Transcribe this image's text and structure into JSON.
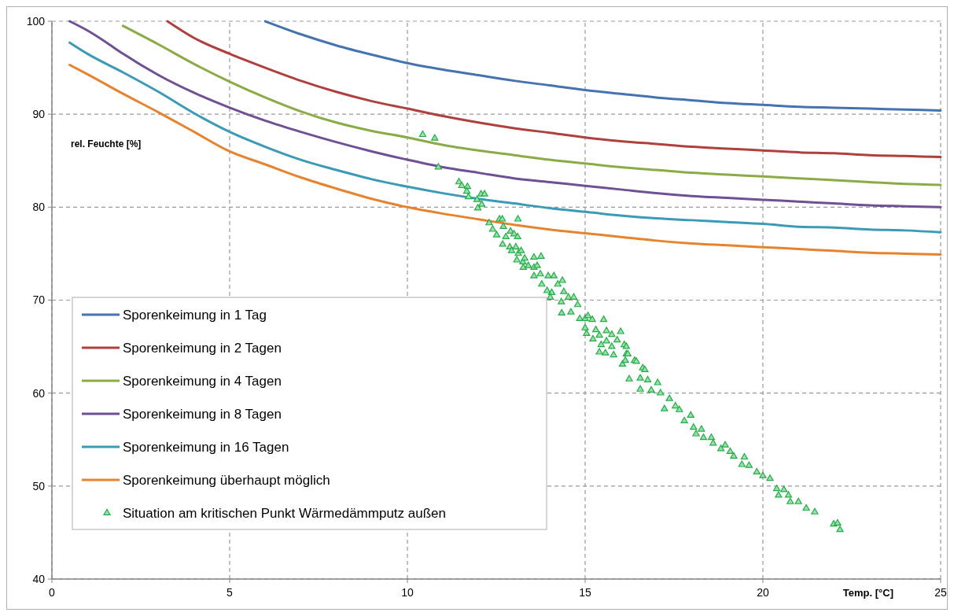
{
  "chart_data": {
    "type": "line",
    "xlabel": "Temp. [°C]",
    "ylabel": "rel. Feuchte [%]",
    "xlim": [
      0,
      25
    ],
    "xticks": [
      0,
      5,
      10,
      15,
      20,
      25
    ],
    "ylim": [
      40,
      100
    ],
    "yticks": [
      40,
      50,
      60,
      70,
      80,
      90,
      100
    ],
    "grid": true,
    "legend": "bottom left",
    "marker": "none",
    "series": [
      {
        "name": "Sporenkeimung in 1 Tag",
        "color": "#4572b0",
        "x": [
          6,
          7,
          8,
          9,
          10,
          11,
          12,
          13,
          14,
          15,
          16,
          17,
          18,
          19,
          20,
          21,
          22,
          23,
          24,
          25
        ],
        "values": [
          100,
          98.6,
          97.4,
          96.4,
          95.5,
          94.8,
          94.2,
          93.6,
          93.1,
          92.6,
          92.2,
          91.8,
          91.5,
          91.2,
          91,
          90.8,
          90.7,
          90.6,
          90.5,
          90.4
        ]
      },
      {
        "name": "Sporenkeimung in 2 Tagen",
        "color": "#b0403e",
        "x": [
          3.25,
          4,
          5,
          6,
          7,
          8,
          9,
          10,
          11,
          12,
          13,
          14,
          15,
          16,
          17,
          18,
          19,
          20,
          21,
          22,
          23,
          24,
          25
        ],
        "values": [
          100,
          98.2,
          96.5,
          95,
          93.6,
          92.4,
          91.4,
          90.6,
          89.8,
          89.1,
          88.5,
          88,
          87.5,
          87.1,
          86.8,
          86.5,
          86.3,
          86.1,
          85.9,
          85.8,
          85.6,
          85.5,
          85.4
        ]
      },
      {
        "name": "Sporenkeimung in 4 Tagen",
        "color": "#8aab45",
        "x": [
          2,
          3,
          4,
          5,
          6,
          7,
          8,
          9,
          10,
          11,
          12,
          13,
          14,
          15,
          16,
          17,
          18,
          19,
          20,
          21,
          22,
          23,
          24,
          25
        ],
        "values": [
          99.5,
          97.5,
          95.4,
          93.5,
          91.8,
          90.3,
          89.1,
          88.2,
          87.5,
          86.7,
          86.1,
          85.6,
          85.1,
          84.7,
          84.3,
          84,
          83.7,
          83.5,
          83.3,
          83.1,
          82.9,
          82.7,
          82.5,
          82.4
        ]
      },
      {
        "name": "Sporenkeimung in 8 Tagen",
        "color": "#6f5095",
        "x": [
          0.5,
          1,
          1.5,
          2,
          3,
          4,
          5,
          6,
          7,
          8,
          9,
          10,
          11,
          12,
          13,
          14,
          15,
          16,
          17,
          18,
          19,
          20,
          21,
          22,
          23,
          24,
          25
        ],
        "values": [
          100,
          99,
          97.8,
          96.5,
          94.2,
          92.3,
          90.7,
          89.3,
          88.1,
          87,
          86,
          85.1,
          84.3,
          83.7,
          83.1,
          82.7,
          82.3,
          81.9,
          81.5,
          81.2,
          81,
          80.8,
          80.6,
          80.4,
          80.2,
          80.1,
          80
        ]
      },
      {
        "name": "Sporenkeimung in 16 Tagen",
        "color": "#3b9ab5",
        "x": [
          0.5,
          1,
          2,
          3,
          4,
          5,
          6,
          7,
          8,
          9,
          10,
          11,
          12,
          13,
          14,
          15,
          16,
          17,
          18,
          19,
          20,
          21,
          22,
          23,
          24,
          25
        ],
        "values": [
          97.7,
          96.5,
          94.5,
          92.4,
          90.1,
          88.1,
          86.5,
          85.1,
          84,
          83,
          82.2,
          81.5,
          80.9,
          80.4,
          79.9,
          79.5,
          79.1,
          78.8,
          78.6,
          78.4,
          78.2,
          77.9,
          77.8,
          77.6,
          77.5,
          77.3
        ]
      },
      {
        "name": "Sporenkeimung überhaupt möglich",
        "color": "#e5832f",
        "x": [
          0.5,
          1,
          2,
          3,
          4,
          5,
          6,
          7,
          8,
          9,
          10,
          11,
          12,
          13,
          14,
          15,
          16,
          17,
          18,
          19,
          20,
          21,
          22,
          23,
          24,
          25
        ],
        "values": [
          95.3,
          94.3,
          92.2,
          90.2,
          88.1,
          86,
          84.6,
          83.2,
          82,
          80.9,
          80,
          79.3,
          78.7,
          78.1,
          77.6,
          77.2,
          76.8,
          76.4,
          76.1,
          75.9,
          75.7,
          75.5,
          75.3,
          75.1,
          75,
          74.9
        ]
      },
      {
        "name": "Situation am kritischen Punkt Wärmedämmputz außen",
        "type": "scatter",
        "marker": "triangle",
        "color": "#22ad4a",
        "x": [
          10.43,
          10.77,
          10.87,
          11.45,
          11.53,
          11.69,
          11.67,
          11.72,
          11.96,
          12.07,
          12.17,
          12.09,
          11.98,
          12.3,
          12.59,
          12.67,
          13.11,
          12.4,
          12.7,
          12.51,
          12.77,
          12.9,
          13.0,
          13.1,
          12.68,
          12.88,
          13.05,
          12.93,
          13.12,
          13.2,
          13.08,
          13.25,
          13.3,
          13.56,
          13.76,
          13.26,
          13.4,
          13.56,
          13.65,
          13.56,
          13.74,
          13.96,
          14.12,
          13.78,
          13.93,
          14.06,
          14.23,
          14.36,
          14.02,
          14.33,
          14.4,
          14.53,
          14.68,
          14.79,
          14.34,
          14.6,
          14.85,
          15.0,
          15.08,
          15.2,
          15.52,
          15.0,
          15.04,
          15.3,
          15.4,
          15.6,
          15.75,
          16.0,
          15.22,
          15.45,
          15.6,
          15.75,
          15.9,
          16.1,
          15.4,
          15.57,
          15.8,
          16.05,
          16.16,
          16.39,
          16.62,
          16.16,
          16.2,
          16.13,
          16.44,
          16.68,
          16.24,
          16.55,
          16.76,
          17.04,
          16.55,
          16.86,
          17.12,
          17.37,
          17.23,
          17.54,
          17.65,
          17.97,
          17.79,
          18.05,
          18.27,
          18.12,
          18.33,
          18.55,
          18.6,
          18.94,
          18.82,
          19.08,
          19.18,
          19.48,
          19.41,
          19.61,
          19.83,
          20.0,
          20.2,
          20.39,
          20.59,
          20.44,
          20.72,
          20.77,
          21.0,
          21.22,
          21.46,
          21.99,
          22.1,
          22.17
        ],
        "values": [
          87.8,
          87.4,
          84.3,
          82.7,
          82.3,
          82.2,
          81.7,
          81.1,
          80.8,
          81.4,
          81.4,
          80.3,
          79.9,
          78.3,
          78.7,
          78.7,
          78.7,
          77.6,
          77.9,
          77.0,
          76.8,
          77.4,
          77.1,
          76.8,
          76.0,
          75.7,
          75.7,
          75.3,
          75.0,
          75.3,
          74.3,
          74.1,
          74.5,
          74.6,
          74.7,
          73.5,
          73.7,
          73.5,
          73.7,
          72.6,
          72.8,
          72.6,
          72.6,
          71.7,
          71.0,
          70.8,
          71.7,
          72.1,
          70.3,
          69.8,
          70.9,
          70.3,
          70.3,
          69.5,
          68.6,
          68.7,
          68.0,
          68.0,
          68.3,
          67.9,
          67.9,
          67.0,
          66.4,
          66.8,
          66.2,
          66.7,
          66.3,
          66.6,
          65.8,
          65.2,
          65.6,
          65.0,
          65.7,
          65.2,
          64.4,
          64.3,
          64.1,
          63.1,
          64.2,
          63.5,
          62.7,
          65.0,
          64.2,
          63.5,
          63.4,
          62.5,
          61.5,
          61.6,
          61.4,
          61.1,
          60.4,
          60.3,
          60.0,
          59.4,
          58.3,
          58.6,
          58.2,
          57.6,
          57.0,
          56.3,
          56.1,
          55.6,
          55.2,
          55.2,
          54.6,
          54.4,
          54.0,
          53.7,
          53.2,
          53.1,
          52.3,
          52.2,
          51.5,
          51.1,
          50.8,
          49.7,
          49.6,
          49.0,
          49.0,
          48.3,
          48.3,
          47.6,
          47.2,
          45.9,
          46.0,
          45.3
        ]
      }
    ]
  }
}
